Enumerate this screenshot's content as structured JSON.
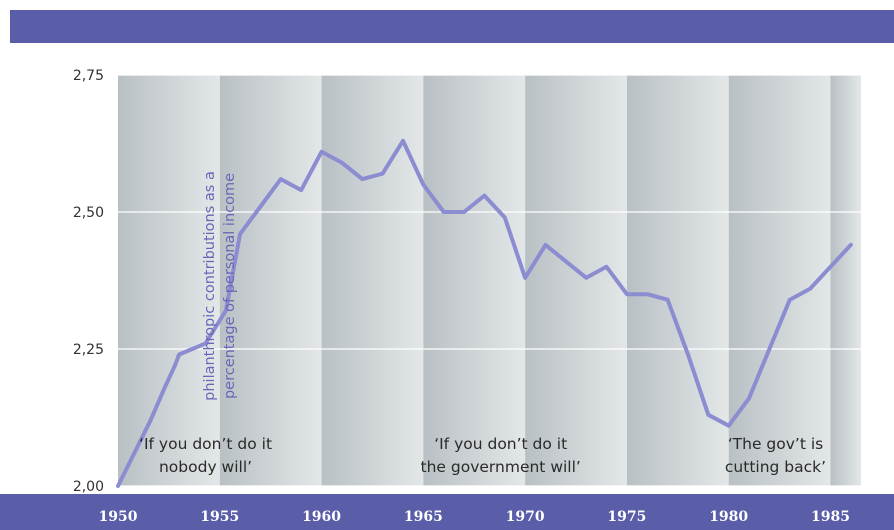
{
  "colors": {
    "band": "#5a5ea8",
    "line": "#8c8cd1",
    "axis_text": "#333333",
    "ylabel_text": "#6a66b8",
    "bg_dark": "#b9c0c4",
    "bg_light": "#e3e7e8",
    "grid": "#ffffff"
  },
  "chart_data": {
    "type": "line",
    "title": "",
    "ylabel_lines": [
      "philanthropic contributions as a",
      "percentage of personal income"
    ],
    "xlabel": "",
    "xlim": [
      1950,
      1986.5
    ],
    "ylim": [
      2.0,
      2.75
    ],
    "x_ticks": [
      "1950",
      "1955",
      "1960",
      "1965",
      "1970",
      "1975",
      "1980",
      "1985"
    ],
    "y_ticks": [
      "2,00",
      "2,25",
      "2,50",
      "2,75"
    ],
    "grid": "horizontal",
    "series": [
      {
        "x": [
          1950,
          1950.8,
          1951.6,
          1952.3,
          1952.8,
          1953,
          1954.3,
          1955.3,
          1956,
          1957,
          1958,
          1959,
          1960,
          1961,
          1962,
          1963,
          1964,
          1965,
          1966,
          1967,
          1968,
          1969,
          1970,
          1971,
          1972,
          1973,
          1974,
          1975,
          1976,
          1977,
          1978,
          1979,
          1980,
          1981,
          1982,
          1983,
          1984,
          1985,
          1986
        ],
        "y": [
          2.0,
          2.06,
          2.12,
          2.18,
          2.22,
          2.24,
          2.26,
          2.32,
          2.46,
          2.51,
          2.56,
          2.54,
          2.61,
          2.59,
          2.56,
          2.57,
          2.63,
          2.55,
          2.5,
          2.5,
          2.53,
          2.49,
          2.38,
          2.44,
          2.41,
          2.38,
          2.4,
          2.35,
          2.35,
          2.34,
          2.24,
          2.13,
          2.11,
          2.16,
          2.25,
          2.34,
          2.36,
          2.4,
          2.44
        ]
      }
    ],
    "annotations": [
      {
        "lines": [
          "‘If you don’t do it",
          "nobody will’"
        ],
        "x": 1954.3
      },
      {
        "lines": [
          "‘If you don’t do it",
          "the government will’"
        ],
        "x": 1968.8
      },
      {
        "lines": [
          "‘The gov’t is",
          "cutting back’"
        ],
        "x": 1982.3
      }
    ]
  }
}
